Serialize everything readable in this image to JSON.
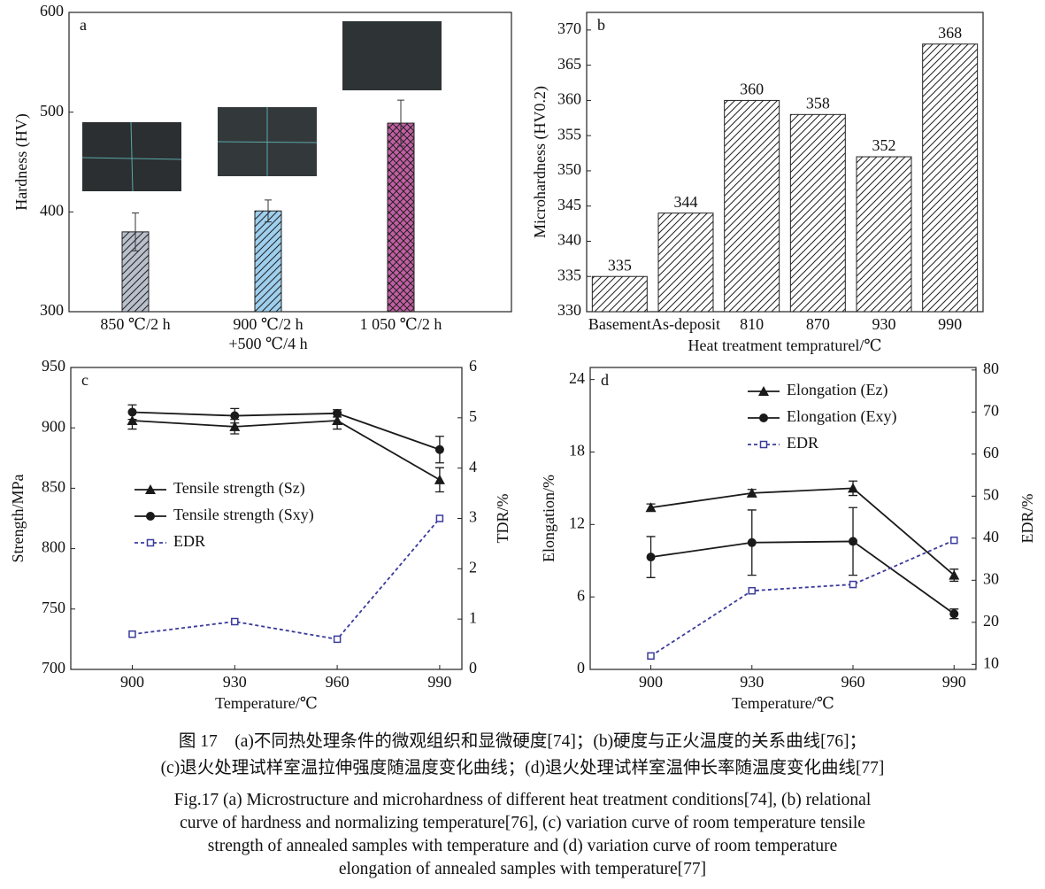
{
  "chart_data": [
    {
      "type": "bar",
      "label": "a",
      "ylabel": "Hardness (HV)",
      "categories": [
        "850 ℃/2 h",
        "900 ℃/2 h\n+500 ℃/4 h",
        "1 050 ℃/2 h"
      ],
      "values": [
        380,
        401,
        489
      ],
      "errors": [
        19,
        11,
        23
      ],
      "colors": [
        "#b9bfcb",
        "#9fcfee",
        "#c25ea4"
      ],
      "hatches": [
        "diag",
        "diag",
        "cross"
      ],
      "ylim": [
        300,
        600
      ],
      "yticks": [
        300,
        400,
        500,
        600
      ]
    },
    {
      "type": "bar",
      "label": "b",
      "ylabel": "Microhardness (HV0.2)",
      "xlabel": "Heat treatment tempraturel/℃",
      "categories": [
        "Basement",
        "As-deposit",
        "810",
        "870",
        "930",
        "990"
      ],
      "values": [
        335,
        344,
        360,
        358,
        352,
        368
      ],
      "color": "#ffffff",
      "hatch": "diag",
      "ylim": [
        330,
        372.5
      ],
      "yticks": [
        330,
        335,
        340,
        345,
        350,
        355,
        360,
        365,
        370
      ]
    },
    {
      "type": "line",
      "label": "c",
      "xlabel": "Temperature/℃",
      "ylabel": "Strength/MPa",
      "y2label": "TDR/%",
      "x": [
        900,
        930,
        960,
        990
      ],
      "xlim": [
        882,
        996.5
      ],
      "xticks": [
        900,
        930,
        960,
        990
      ],
      "ylim": [
        700,
        950
      ],
      "yticks": [
        700,
        750,
        800,
        850,
        900,
        950
      ],
      "y2lim": [
        0,
        6
      ],
      "y2ticks": [
        0,
        1,
        2,
        3,
        4,
        5,
        6
      ],
      "legend": "center left",
      "series": [
        {
          "name": "Tensile strength (Sz)",
          "color": "#1a1a1a",
          "marker": "triangle",
          "values": [
            906,
            901,
            906,
            857
          ],
          "errors": [
            7,
            6,
            7,
            10
          ]
        },
        {
          "name": "Tensile strength (Sxy)",
          "color": "#1a1a1a",
          "marker": "circle",
          "values": [
            913,
            910,
            912,
            882
          ],
          "errors": [
            6,
            6,
            3,
            11
          ]
        },
        {
          "name": "EDR",
          "color": "#3b3b9c",
          "marker": "square",
          "dashed": true,
          "axis": "y2",
          "values": [
            0.7,
            0.95,
            0.6,
            3.0
          ]
        }
      ]
    },
    {
      "type": "line",
      "label": "d",
      "xlabel": "Temperature/℃",
      "ylabel": "Elongation/%",
      "y2label": "EDR/%",
      "x": [
        900,
        930,
        960,
        990
      ],
      "xlim": [
        882,
        996.5
      ],
      "xticks": [
        900,
        930,
        960,
        990
      ],
      "ylim": [
        0,
        25
      ],
      "yticks": [
        0,
        6,
        12,
        18,
        24
      ],
      "y2lim": [
        8.8,
        80.6
      ],
      "y2ticks": [
        10,
        20,
        30,
        40,
        50,
        60,
        70,
        80
      ],
      "legend": "upper center",
      "series": [
        {
          "name": "Elongation (Ez)",
          "color": "#1a1a1a",
          "marker": "triangle",
          "values": [
            13.4,
            14.6,
            15.0,
            7.8
          ],
          "errors": [
            0.3,
            0.3,
            0.6,
            0.5
          ]
        },
        {
          "name": "Elongation (Exy)",
          "color": "#1a1a1a",
          "marker": "circle",
          "values": [
            9.3,
            10.5,
            10.6,
            4.6
          ],
          "errors": [
            1.7,
            2.7,
            2.8,
            0.4
          ]
        },
        {
          "name": "EDR",
          "color": "#3b3b9c",
          "marker": "square",
          "dashed": true,
          "axis": "y2",
          "values": [
            12,
            27.5,
            29,
            39.5
          ]
        }
      ]
    }
  ],
  "caption": [
    "图 17　(a)不同热处理条件的微观组织和显微硬度[74]；(b)硬度与正火温度的关系曲线[76]；",
    "(c)退火处理试样室温拉伸强度随温度变化曲线；(d)退火处理试样室温伸长率随温度变化曲线[77]",
    "Fig.17 (a) Microstructure and microhardness of different heat treatment conditions[74], (b) relational",
    "curve of hardness and normalizing temperature[76], (c) variation curve of room temperature tensile",
    "strength of annealed samples with temperature and (d) variation curve of room temperature",
    "elongation of annealed samples with temperature[77]"
  ]
}
